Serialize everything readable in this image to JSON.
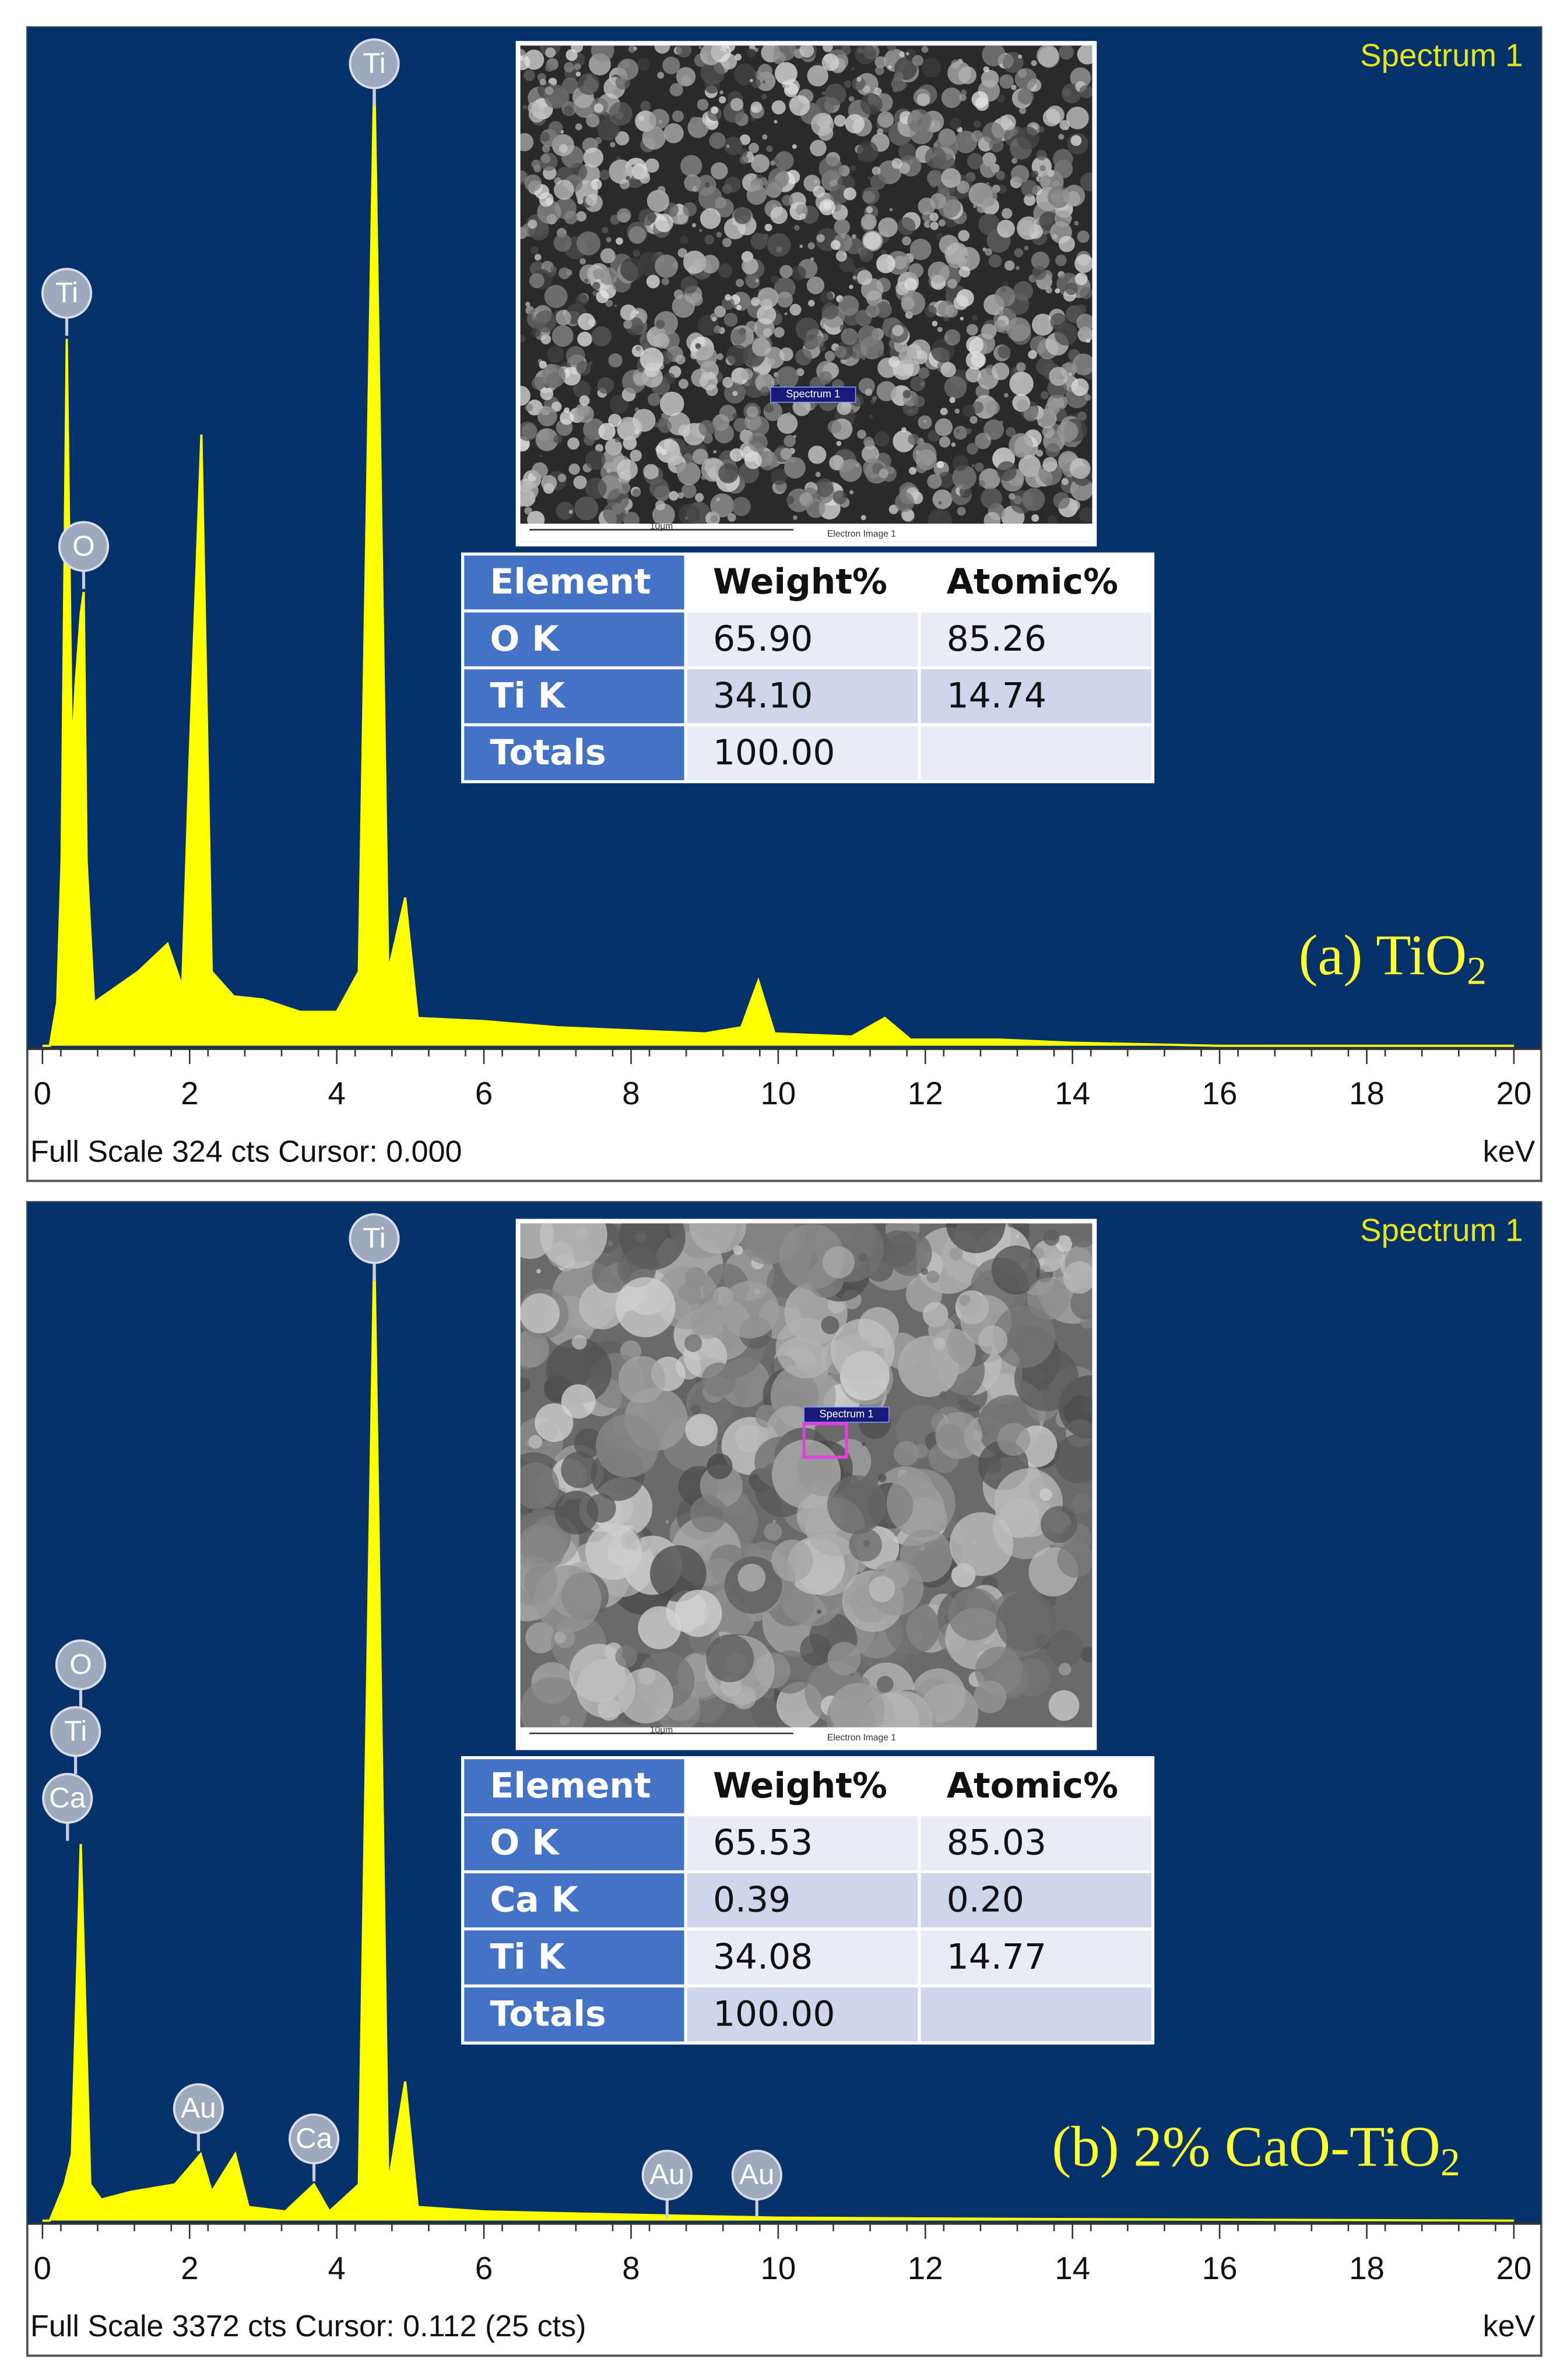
{
  "chart_data": [
    {
      "type": "area",
      "color": "#ffff00",
      "background": "#06326b",
      "spectrum_label": "Spectrum 1",
      "footer": "Full Scale 324 cts Cursor: 0.000",
      "x_unit": "keV",
      "sample_label": {
        "text": "(a) TiO",
        "subscript": "2"
      },
      "xlim": [
        0,
        20
      ],
      "xticks": [
        0,
        2,
        4,
        6,
        8,
        10,
        12,
        14,
        16,
        18,
        20
      ],
      "ylim": [
        0,
        324
      ],
      "x": [
        0,
        0.1,
        0.2,
        0.26,
        0.33,
        0.4,
        0.45,
        0.52,
        0.56,
        0.6,
        0.7,
        1.0,
        1.3,
        1.7,
        1.9,
        2.0,
        2.16,
        2.3,
        2.6,
        3.0,
        3.5,
        4.0,
        4.3,
        4.51,
        4.7,
        4.93,
        5.1,
        6,
        7,
        8,
        9,
        9.5,
        9.73,
        9.95,
        11,
        11.45,
        11.8,
        13,
        14,
        16,
        20
      ],
      "values": [
        0,
        0,
        14,
        60,
        229,
        93,
        117,
        140,
        147,
        60,
        14,
        19,
        24,
        33,
        19,
        93,
        198,
        24,
        16,
        15,
        11,
        11,
        24,
        316,
        24,
        48,
        9,
        8,
        6,
        5,
        4,
        6,
        21,
        4,
        3,
        9,
        2,
        2,
        1,
        0,
        0
      ],
      "peak_labels": [
        {
          "text": "Ti",
          "x": 4.51
        },
        {
          "text": "Ti",
          "x": 0.33
        },
        {
          "text": "O",
          "x": 0.56
        }
      ],
      "image_labels": {
        "spot": "Spectrum 1",
        "scale": "10μm",
        "caption": "Electron Image 1"
      },
      "table": {
        "header": [
          "Element",
          "Weight%",
          "Atomic%"
        ],
        "rows": [
          [
            "O K",
            "65.90",
            "85.26"
          ],
          [
            "Ti K",
            "34.10",
            "14.74"
          ],
          [
            "Totals",
            "100.00"
          ]
        ]
      }
    },
    {
      "type": "area",
      "color": "#ffff00",
      "background": "#06326b",
      "spectrum_label": "Spectrum 1",
      "footer": "Full Scale 3372 cts Cursor: 0.112  (25 cts)",
      "x_unit": "keV",
      "sample_label": {
        "text": "(b) 2% CaO-TiO",
        "subscript": "2"
      },
      "xlim": [
        0,
        20
      ],
      "xticks": [
        0,
        2,
        4,
        6,
        8,
        10,
        12,
        14,
        16,
        18,
        20
      ],
      "ylim": [
        0,
        3372
      ],
      "x": [
        0,
        0.1,
        0.3,
        0.4,
        0.52,
        0.65,
        0.8,
        1.2,
        1.8,
        2.15,
        2.3,
        2.62,
        2.8,
        3.3,
        3.69,
        3.9,
        4.3,
        4.51,
        4.7,
        4.93,
        5.1,
        6,
        8,
        10,
        14,
        20
      ],
      "values": [
        0,
        0,
        122,
        224,
        1270,
        122,
        71,
        97,
        122,
        224,
        97,
        224,
        46,
        31,
        122,
        31,
        122,
        3284,
        122,
        469,
        46,
        31,
        20,
        10,
        5,
        0
      ],
      "peak_labels": [
        {
          "text": "Ti",
          "x": 4.51
        },
        {
          "text": "Ca",
          "x": 0.34
        },
        {
          "text": "Ti",
          "x": 0.45
        },
        {
          "text": "O",
          "x": 0.52
        },
        {
          "text": "Au",
          "x": 2.12
        },
        {
          "text": "Ca",
          "x": 3.69
        },
        {
          "text": "Au",
          "x": 8.49
        },
        {
          "text": "Au",
          "x": 9.71
        }
      ],
      "image_labels": {
        "spot": "Spectrum 1",
        "scale": "10μm",
        "caption": "Electron Image 1"
      },
      "table": {
        "header": [
          "Element",
          "Weight%",
          "Atomic%"
        ],
        "rows": [
          [
            "O K",
            "65.53",
            "85.03"
          ],
          [
            "Ca K",
            "0.39",
            "0.20"
          ],
          [
            "Ti K",
            "34.08",
            "14.77"
          ],
          [
            "Totals",
            "100.00"
          ]
        ]
      }
    }
  ]
}
